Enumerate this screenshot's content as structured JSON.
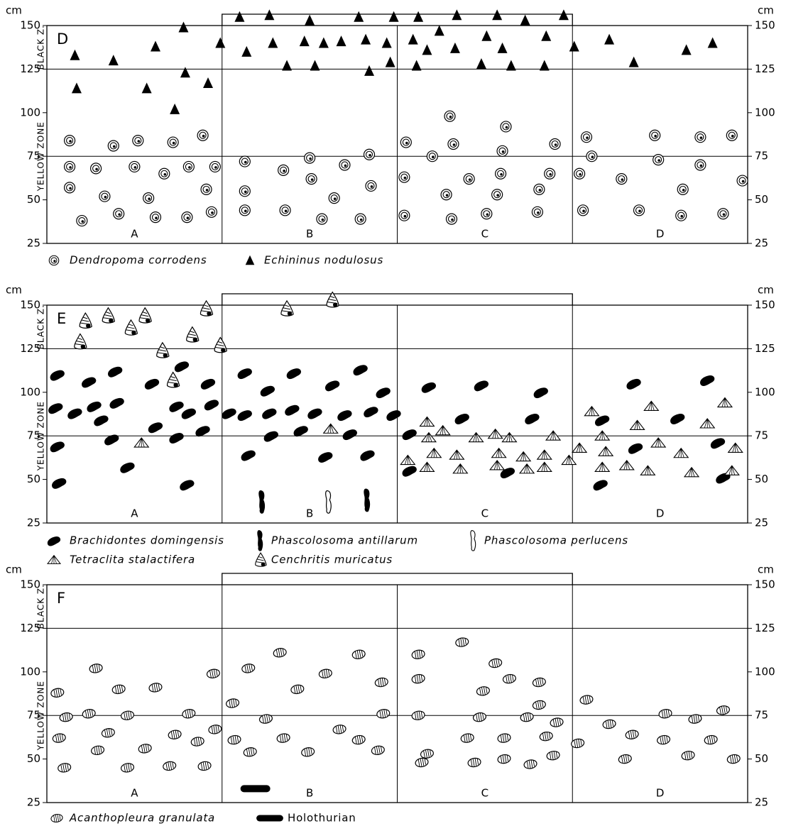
{
  "chart_data": [
    {
      "type": "scatter",
      "panel": "D",
      "unit": "cm",
      "zones": [
        "BLACK Z.",
        "YELLOW ZONE"
      ],
      "sections": [
        "A",
        "B",
        "C",
        "D"
      ],
      "xlim": [
        0,
        40
      ],
      "ylim": [
        25,
        150
      ],
      "yticks": [
        25,
        50,
        75,
        100,
        125,
        150
      ],
      "zone_lines": [
        75,
        125
      ],
      "series": [
        {
          "name": "Dendropoma corrodens",
          "marker": "spiral",
          "x": [
            1.3,
            1.3,
            1.3,
            2.0,
            2.8,
            3.3,
            3.8,
            4.1,
            5.2,
            5.0,
            5.8,
            6.2,
            6.7,
            7.2,
            8.1,
            8.0,
            8.9,
            9.1,
            9.4,
            9.6,
            11.3,
            11.3,
            11.3,
            13.5,
            13.6,
            15.0,
            15.1,
            15.7,
            16.4,
            17.0,
            17.9,
            18.4,
            18.5,
            20.4,
            20.5,
            20.4,
            22.0,
            23.0,
            23.2,
            22.8,
            23.1,
            24.1,
            25.1,
            26.0,
            25.9,
            26.2,
            25.7,
            28.1,
            28.0,
            28.7,
            29.0,
            30.4,
            30.8,
            31.1,
            30.6,
            32.8,
            33.8,
            34.7,
            34.9,
            36.3,
            36.2,
            37.3,
            37.3,
            39.1,
            38.6,
            39.7
          ],
          "values": [
            84,
            69,
            57,
            38,
            68,
            52,
            81,
            42,
            84,
            69,
            51,
            40,
            65,
            83,
            69,
            40,
            87,
            56,
            43,
            69,
            72,
            55,
            44,
            67,
            44,
            74,
            62,
            39,
            51,
            70,
            39,
            76,
            58,
            63,
            83,
            41,
            75,
            98,
            82,
            53,
            39,
            62,
            42,
            78,
            65,
            92,
            53,
            56,
            43,
            65,
            82,
            65,
            86,
            75,
            44,
            62,
            44,
            87,
            73,
            56,
            41,
            86,
            70,
            87,
            42,
            61
          ]
        },
        {
          "name": "Echininus nodulosus",
          "marker": "triangle",
          "x": [
            1.6,
            1.7,
            3.8,
            5.7,
            6.2,
            7.8,
            7.9,
            9.2,
            9.9,
            11.0,
            11.4,
            12.7,
            12.9,
            13.7,
            14.7,
            15.0,
            15.3,
            15.8,
            16.8,
            17.8,
            18.2,
            18.4,
            19.4,
            19.6,
            19.8,
            20.9,
            21.1,
            21.2,
            21.7,
            22.4,
            23.3,
            23.4,
            24.8,
            25.1,
            25.7,
            26.0,
            26.5,
            27.3,
            28.4,
            28.5,
            29.5,
            30.1,
            32.1,
            33.5,
            36.5,
            38.0,
            7.3
          ],
          "values": [
            133,
            114,
            130,
            114,
            138,
            149,
            123,
            117,
            140,
            155,
            135,
            156,
            140,
            127,
            141,
            153,
            127,
            140,
            141,
            155,
            142,
            124,
            140,
            129,
            155,
            142,
            127,
            155,
            136,
            147,
            137,
            156,
            128,
            144,
            156,
            137,
            127,
            153,
            127,
            144,
            156,
            138,
            142,
            129,
            136,
            140,
            102
          ]
        }
      ]
    },
    {
      "type": "scatter",
      "panel": "E",
      "unit": "cm",
      "zones": [
        "BLACK Z.",
        "YELLOW ZONE"
      ],
      "sections": [
        "A",
        "B",
        "C",
        "D"
      ],
      "xlim": [
        0,
        40
      ],
      "ylim": [
        25,
        150
      ],
      "yticks": [
        25,
        50,
        75,
        100,
        125,
        150
      ],
      "zone_lines": [
        75,
        125
      ],
      "series": [
        {
          "name": "Brachidontes domingensis",
          "marker": "mussel",
          "x": [
            0.6,
            0.5,
            0.6,
            0.7,
            1.6,
            2.4,
            2.7,
            3.1,
            3.9,
            4.0,
            3.7,
            4.6,
            6.2,
            6.0,
            7.4,
            7.4,
            7.7,
            8.1,
            8.9,
            9.2,
            9.4,
            8.0,
            10.4,
            11.3,
            11.3,
            11.5,
            12.6,
            12.7,
            12.8,
            14.0,
            14.1,
            14.5,
            15.3,
            16.3,
            15.9,
            17.0,
            17.3,
            17.9,
            18.5,
            18.3,
            19.2,
            19.8,
            20.7,
            20.7,
            21.8,
            23.7,
            24.8,
            26.3,
            27.7,
            28.2,
            31.7,
            33.5,
            33.6,
            36.0,
            37.7,
            38.3,
            38.6,
            31.6
          ],
          "values": [
            110,
            91,
            69,
            48,
            88,
            106,
            92,
            84,
            112,
            94,
            73,
            57,
            80,
            105,
            92,
            74,
            115,
            88,
            78,
            105,
            93,
            47,
            88,
            111,
            87,
            64,
            101,
            88,
            75,
            90,
            111,
            78,
            88,
            104,
            63,
            87,
            76,
            113,
            89,
            64,
            100,
            87,
            76,
            55,
            103,
            85,
            104,
            54,
            85,
            100,
            84,
            105,
            68,
            85,
            107,
            71,
            51,
            47
          ]
        },
        {
          "name": "Phascolosoma antillarum",
          "marker": "worm-dark",
          "x": [
            12.3,
            18.3
          ],
          "values": [
            37,
            38
          ]
        },
        {
          "name": "Phascolosoma perlucens",
          "marker": "worm-light",
          "x": [
            16.1
          ],
          "values": [
            37
          ]
        },
        {
          "name": "Tetraclita stalactifera",
          "marker": "barnacle",
          "x": [
            5.4,
            16.2,
            20.6,
            21.7,
            21.8,
            22.1,
            22.6,
            21.7,
            23.4,
            23.6,
            24.5,
            25.6,
            25.8,
            25.7,
            26.4,
            27.2,
            27.4,
            28.4,
            28.4,
            28.9,
            29.8,
            30.4,
            31.1,
            31.7,
            31.9,
            31.7,
            33.1,
            33.7,
            34.3,
            34.5,
            34.9,
            36.2,
            36.8,
            37.7,
            38.7,
            39.3,
            39.1
          ],
          "values": [
            71,
            79,
            61,
            83,
            74,
            65,
            78,
            57,
            64,
            56,
            74,
            76,
            65,
            58,
            74,
            63,
            56,
            64,
            57,
            75,
            61,
            68,
            89,
            75,
            66,
            57,
            58,
            81,
            55,
            92,
            71,
            65,
            54,
            82,
            94,
            68,
            55
          ]
        },
        {
          "name": "Cenchritis muricatus",
          "marker": "snail",
          "x": [
            2.2,
            3.5,
            4.8,
            5.6,
            1.9,
            6.6,
            8.3,
            9.1,
            9.9,
            13.7,
            16.3,
            7.2
          ],
          "values": [
            141,
            144,
            137,
            144,
            129,
            124,
            133,
            148,
            127,
            148,
            153,
            107
          ]
        }
      ]
    },
    {
      "type": "scatter",
      "panel": "F",
      "unit": "cm",
      "zones": [
        "BLACK Z.",
        "YELLOW ZONE"
      ],
      "sections": [
        "A",
        "B",
        "C",
        "D"
      ],
      "xlim": [
        0,
        40
      ],
      "ylim": [
        25,
        150
      ],
      "yticks": [
        25,
        50,
        75,
        100,
        125,
        150
      ],
      "zone_lines": [
        75,
        125
      ],
      "series": [
        {
          "name": "Acanthopleura granulata",
          "marker": "chiton",
          "x": [
            0.6,
            1.1,
            0.7,
            1.0,
            2.4,
            2.8,
            3.5,
            2.9,
            4.1,
            4.6,
            4.6,
            5.6,
            6.2,
            7.3,
            7.0,
            8.1,
            8.6,
            9.0,
            9.5,
            9.6,
            10.6,
            10.7,
            11.5,
            11.6,
            12.5,
            13.3,
            13.5,
            14.3,
            14.9,
            15.9,
            16.7,
            17.8,
            17.8,
            18.9,
            19.1,
            19.2,
            21.2,
            21.2,
            21.2,
            21.7,
            21.4,
            23.7,
            24.0,
            24.4,
            24.9,
            24.7,
            25.6,
            26.1,
            26.4,
            26.1,
            27.6,
            27.4,
            28.1,
            28.1,
            28.5,
            28.9,
            29.1,
            30.3,
            30.8,
            32.1,
            33.0,
            33.4,
            35.3,
            35.2,
            36.6,
            37.0,
            37.9,
            38.6,
            39.2
          ],
          "values": [
            88,
            74,
            62,
            45,
            76,
            102,
            65,
            55,
            90,
            75,
            45,
            56,
            91,
            64,
            46,
            76,
            60,
            46,
            99,
            67,
            82,
            61,
            102,
            54,
            73,
            111,
            62,
            90,
            54,
            99,
            67,
            110,
            61,
            55,
            94,
            76,
            110,
            96,
            75,
            53,
            48,
            117,
            62,
            48,
            89,
            74,
            105,
            62,
            96,
            50,
            47,
            74,
            94,
            81,
            63,
            52,
            71,
            59,
            84,
            70,
            50,
            64,
            76,
            61,
            52,
            73,
            61,
            78,
            50
          ]
        },
        {
          "name": "Holothurian",
          "marker": "blob",
          "x": [
            11.9
          ],
          "values": [
            33
          ]
        }
      ]
    }
  ]
}
